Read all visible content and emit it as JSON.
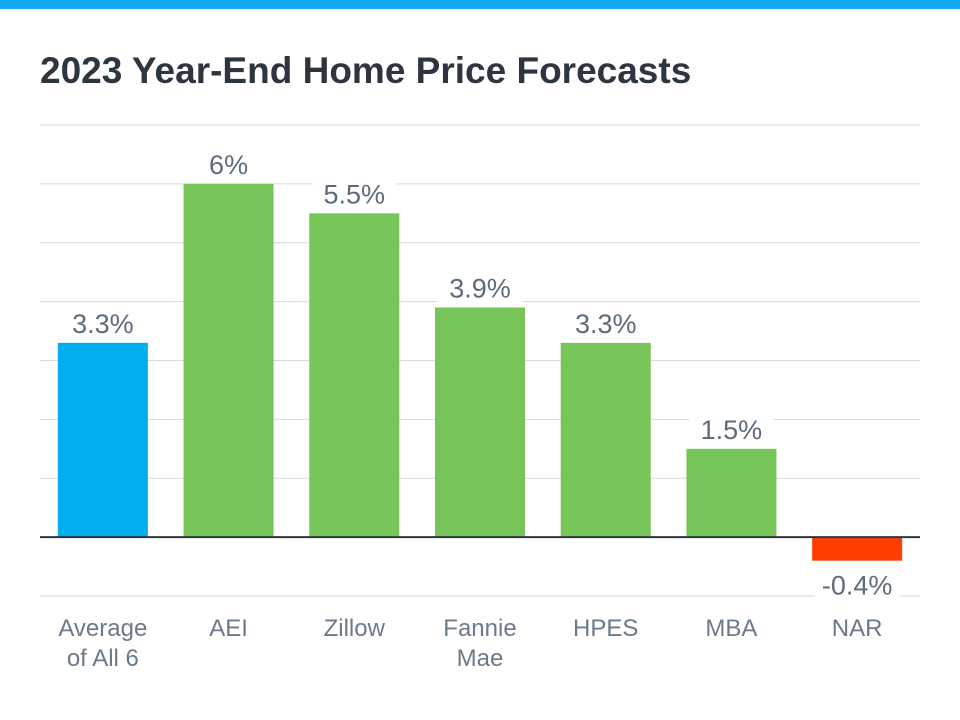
{
  "colors": {
    "top_bar": "#13a9ef",
    "average": "#00adef",
    "positive": "#77c459",
    "negative": "#ff3d00",
    "grid": "#d9d9d9",
    "axis": "#2d3640"
  },
  "chart_data": {
    "type": "bar",
    "title": "2023 Year-End Home Price Forecasts",
    "categories": [
      [
        "Average",
        "of All 6"
      ],
      [
        "AEI"
      ],
      [
        "Zillow"
      ],
      [
        "Fannie",
        "Mae"
      ],
      [
        "HPES"
      ],
      [
        "MBA"
      ],
      [
        "NAR"
      ]
    ],
    "values": [
      3.3,
      6,
      5.5,
      3.9,
      3.3,
      1.5,
      -0.4
    ],
    "data_labels": [
      "3.3%",
      "6%",
      "5.5%",
      "3.9%",
      "3.3%",
      "1.5%",
      "-0.4%"
    ],
    "bar_colors": [
      "#00adef",
      "#77c459",
      "#77c459",
      "#77c459",
      "#77c459",
      "#77c459",
      "#ff3d00"
    ],
    "ylim": [
      -1,
      7
    ],
    "grid_step": 1,
    "grid": true,
    "xlabel": "",
    "ylabel": ""
  }
}
